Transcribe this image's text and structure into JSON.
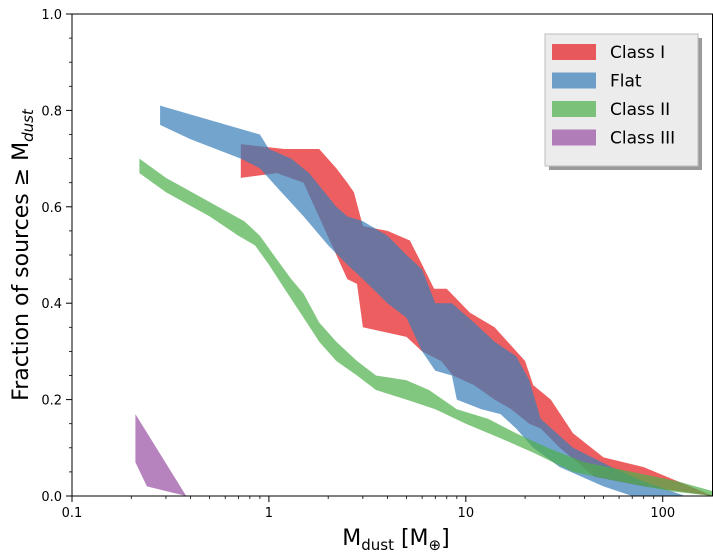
{
  "chart_data": {
    "type": "area",
    "xlabel": "M",
    "xlabel_sub": "dust",
    "xlabel_unit_open": " [M",
    "xlabel_unit_sub": "⊕",
    "xlabel_unit_close": "]",
    "ylabel": "Fraction of sources  ≥ M",
    "ylabel_sub": "dust",
    "x_scale": "log",
    "xlim": [
      0.1,
      180
    ],
    "ylim": [
      0.0,
      1.0
    ],
    "x_ticks": [
      {
        "value": 0.1,
        "label": "0.1"
      },
      {
        "value": 1,
        "label": "1"
      },
      {
        "value": 10,
        "label": "10"
      },
      {
        "value": 100,
        "label": "100"
      }
    ],
    "y_ticks": [
      {
        "value": 0.0,
        "label": "0.0"
      },
      {
        "value": 0.2,
        "label": "0.2"
      },
      {
        "value": 0.4,
        "label": "0.4"
      },
      {
        "value": 0.6,
        "label": "0.6"
      },
      {
        "value": 0.8,
        "label": "0.8"
      },
      {
        "value": 1.0,
        "label": "1.0"
      }
    ],
    "legend_position": "top-right",
    "series": [
      {
        "name": "Class I",
        "color": "#e41a1c",
        "upper": [
          [
            0.72,
            0.73
          ],
          [
            1.2,
            0.72
          ],
          [
            1.8,
            0.72
          ],
          [
            2.2,
            0.68
          ],
          [
            2.5,
            0.65
          ],
          [
            2.7,
            0.63
          ],
          [
            3.0,
            0.56
          ],
          [
            4.0,
            0.55
          ],
          [
            5.2,
            0.53
          ],
          [
            6.0,
            0.48
          ],
          [
            6.9,
            0.43
          ],
          [
            8.0,
            0.43
          ],
          [
            10.5,
            0.38
          ],
          [
            14,
            0.35
          ],
          [
            20,
            0.28
          ],
          [
            22,
            0.23
          ],
          [
            27,
            0.2
          ],
          [
            35,
            0.13
          ],
          [
            50,
            0.08
          ],
          [
            80,
            0.06
          ],
          [
            180,
            0.0
          ]
        ],
        "lower": [
          [
            0.72,
            0.66
          ],
          [
            1.1,
            0.67
          ],
          [
            1.5,
            0.65
          ],
          [
            2.5,
            0.45
          ],
          [
            2.8,
            0.44
          ],
          [
            3.0,
            0.35
          ],
          [
            5.0,
            0.33
          ],
          [
            6.0,
            0.3
          ],
          [
            7.5,
            0.28
          ],
          [
            8.6,
            0.25
          ],
          [
            11,
            0.23
          ],
          [
            14,
            0.2
          ],
          [
            17,
            0.18
          ],
          [
            21,
            0.15
          ],
          [
            24,
            0.14
          ],
          [
            30,
            0.1
          ],
          [
            45,
            0.04
          ],
          [
            80,
            0.02
          ],
          [
            180,
            0.0
          ]
        ]
      },
      {
        "name": "Flat",
        "color": "#377eb8",
        "upper": [
          [
            0.28,
            0.81
          ],
          [
            0.5,
            0.78
          ],
          [
            0.9,
            0.75
          ],
          [
            1.0,
            0.72
          ],
          [
            1.3,
            0.7
          ],
          [
            1.6,
            0.67
          ],
          [
            2.2,
            0.6
          ],
          [
            2.5,
            0.58
          ],
          [
            3.0,
            0.57
          ],
          [
            4.0,
            0.54
          ],
          [
            5.0,
            0.5
          ],
          [
            6.0,
            0.47
          ],
          [
            7.0,
            0.4
          ],
          [
            8.5,
            0.4
          ],
          [
            11,
            0.36
          ],
          [
            14,
            0.32
          ],
          [
            18,
            0.29
          ],
          [
            21,
            0.24
          ],
          [
            24,
            0.16
          ],
          [
            35,
            0.1
          ],
          [
            55,
            0.06
          ],
          [
            80,
            0.03
          ],
          [
            130,
            0.0
          ]
        ],
        "lower": [
          [
            0.28,
            0.77
          ],
          [
            0.4,
            0.74
          ],
          [
            0.72,
            0.7
          ],
          [
            0.9,
            0.68
          ],
          [
            1.1,
            0.64
          ],
          [
            1.5,
            0.58
          ],
          [
            2.0,
            0.52
          ],
          [
            2.5,
            0.48
          ],
          [
            3.0,
            0.45
          ],
          [
            4.0,
            0.4
          ],
          [
            5.0,
            0.37
          ],
          [
            6.0,
            0.3
          ],
          [
            7.0,
            0.26
          ],
          [
            8.5,
            0.25
          ],
          [
            9.0,
            0.2
          ],
          [
            12,
            0.18
          ],
          [
            15,
            0.17
          ],
          [
            18,
            0.14
          ],
          [
            22,
            0.1
          ],
          [
            30,
            0.06
          ],
          [
            50,
            0.02
          ],
          [
            70,
            0.0
          ]
        ]
      },
      {
        "name": "Class II",
        "color": "#4daf4a",
        "upper": [
          [
            0.22,
            0.7
          ],
          [
            0.3,
            0.66
          ],
          [
            0.5,
            0.61
          ],
          [
            0.75,
            0.57
          ],
          [
            0.9,
            0.54
          ],
          [
            1.1,
            0.49
          ],
          [
            1.3,
            0.45
          ],
          [
            1.5,
            0.42
          ],
          [
            1.8,
            0.36
          ],
          [
            2.2,
            0.32
          ],
          [
            2.8,
            0.28
          ],
          [
            3.5,
            0.25
          ],
          [
            5.0,
            0.24
          ],
          [
            6.5,
            0.22
          ],
          [
            9.0,
            0.18
          ],
          [
            13,
            0.16
          ],
          [
            18,
            0.13
          ],
          [
            26,
            0.1
          ],
          [
            40,
            0.07
          ],
          [
            70,
            0.05
          ],
          [
            120,
            0.03
          ],
          [
            180,
            0.01
          ]
        ],
        "lower": [
          [
            0.22,
            0.67
          ],
          [
            0.3,
            0.63
          ],
          [
            0.5,
            0.58
          ],
          [
            0.7,
            0.54
          ],
          [
            0.85,
            0.52
          ],
          [
            1.0,
            0.48
          ],
          [
            1.2,
            0.43
          ],
          [
            1.5,
            0.37
          ],
          [
            1.8,
            0.32
          ],
          [
            2.2,
            0.28
          ],
          [
            2.8,
            0.25
          ],
          [
            3.5,
            0.22
          ],
          [
            5.0,
            0.2
          ],
          [
            7.0,
            0.18
          ],
          [
            10,
            0.15
          ],
          [
            15,
            0.12
          ],
          [
            22,
            0.09
          ],
          [
            35,
            0.05
          ],
          [
            60,
            0.03
          ],
          [
            110,
            0.01
          ],
          [
            180,
            0.0
          ]
        ]
      },
      {
        "name": "Class III",
        "color": "#984ea3",
        "upper": [
          [
            0.21,
            0.17
          ],
          [
            0.25,
            0.12
          ],
          [
            0.38,
            0.0
          ]
        ],
        "lower": [
          [
            0.21,
            0.07
          ],
          [
            0.24,
            0.02
          ],
          [
            0.38,
            0.0
          ]
        ]
      }
    ]
  }
}
